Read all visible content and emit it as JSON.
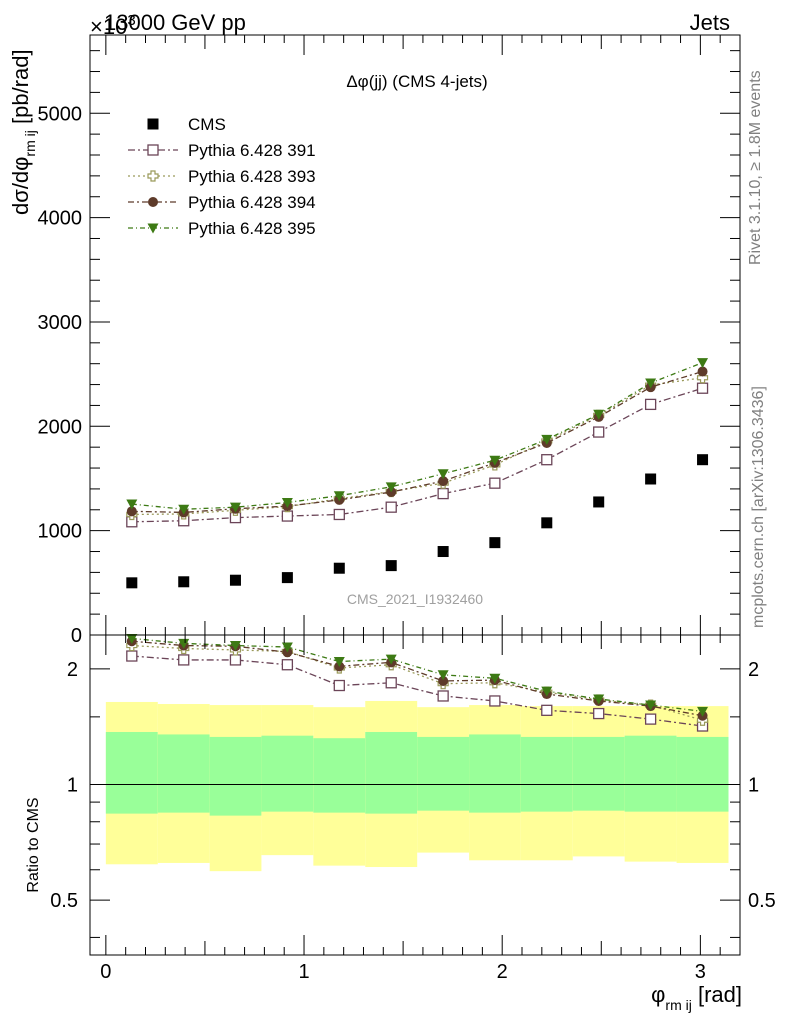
{
  "header": {
    "left": "13000 GeV pp",
    "right": "Jets",
    "exponent": "×10",
    "exponent_power": "3"
  },
  "side_texts": {
    "rivet": "Rivet 3.1.10, ≥ 1.8M events",
    "mcplots": "mcplots.cern.ch [arXiv:1306.3436]"
  },
  "chart_data": [
    {
      "type": "scatter",
      "title": "Δφ(jj) (CMS 4-jets)",
      "watermark": "CMS_2021_I1932460",
      "ylabel": "dσ/dφ",
      "ylabel_sub": "rm ij",
      "ylabel_unit": " [pb/rad]",
      "ylim": [
        0,
        5750
      ],
      "y_ticks": [
        1000,
        2000,
        3000,
        4000,
        5000
      ],
      "y_tick_labels": [
        "1000",
        "2000",
        "3000",
        "4000",
        "5000"
      ],
      "y_zero_label": "0",
      "xlim": [
        -0.08,
        3.2
      ],
      "x": [
        0.131,
        0.393,
        0.654,
        0.916,
        1.178,
        1.44,
        1.702,
        1.963,
        2.225,
        2.487,
        2.749,
        3.011
      ],
      "legend_position": "top-left",
      "series": [
        {
          "name": "CMS",
          "marker": "filled-square",
          "color": "#000000",
          "values": [
            500,
            510,
            525,
            550,
            640,
            665,
            800,
            885,
            1075,
            1275,
            1495,
            1680
          ]
        },
        {
          "name": "Pythia 6.428 391",
          "marker": "open-square",
          "color": "#6b4558",
          "values": [
            1085,
            1095,
            1125,
            1140,
            1155,
            1225,
            1355,
            1455,
            1680,
            1945,
            2210,
            2365
          ]
        },
        {
          "name": "Pythia 6.428 393",
          "marker": "open-cross",
          "color": "#9a9a5a",
          "values": [
            1155,
            1160,
            1195,
            1230,
            1305,
            1375,
            1455,
            1630,
            1860,
            2105,
            2395,
            2465
          ]
        },
        {
          "name": "Pythia 6.428 394",
          "marker": "filled-circle",
          "color": "#5e3b2a",
          "values": [
            1185,
            1175,
            1210,
            1235,
            1295,
            1370,
            1475,
            1650,
            1840,
            2090,
            2375,
            2525
          ]
        },
        {
          "name": "Pythia 6.428 395",
          "marker": "filled-triangle-down",
          "color": "#3d7a14",
          "values": [
            1255,
            1205,
            1225,
            1270,
            1335,
            1420,
            1545,
            1675,
            1875,
            2115,
            2415,
            2610
          ]
        }
      ]
    },
    {
      "type": "scatter",
      "ylabel": "Ratio to CMS",
      "log_y": true,
      "ylim": [
        0.36,
        2.45
      ],
      "y_ticks": [
        0.5,
        1,
        2
      ],
      "y_tick_labels": [
        "0.5",
        "1",
        "2"
      ],
      "xlabel": "φ",
      "xlabel_sub": "rm ij",
      "xlabel_unit": " [rad]",
      "x_ticks": [
        0,
        1,
        2,
        3
      ],
      "x_tick_labels": [
        "0",
        "1",
        "2",
        "3"
      ],
      "x": [
        0.131,
        0.393,
        0.654,
        0.916,
        1.178,
        1.44,
        1.702,
        1.963,
        2.225,
        2.487,
        2.749,
        3.011
      ],
      "bands": {
        "x_edges": [
          0,
          0.262,
          0.524,
          0.785,
          1.047,
          1.309,
          1.571,
          1.833,
          2.094,
          2.356,
          2.618,
          2.88,
          3.142
        ],
        "inner_low": [
          0.84,
          0.845,
          0.83,
          0.85,
          0.845,
          0.84,
          0.855,
          0.845,
          0.85,
          0.855,
          0.85,
          0.85
        ],
        "inner_high": [
          1.37,
          1.35,
          1.33,
          1.34,
          1.32,
          1.37,
          1.33,
          1.35,
          1.33,
          1.33,
          1.34,
          1.33
        ],
        "outer_low": [
          0.62,
          0.625,
          0.595,
          0.655,
          0.615,
          0.61,
          0.665,
          0.635,
          0.635,
          0.65,
          0.63,
          0.625
        ],
        "outer_high": [
          1.64,
          1.62,
          1.61,
          1.61,
          1.59,
          1.65,
          1.59,
          1.61,
          1.6,
          1.6,
          1.6,
          1.6
        ],
        "inner_color": "#99ff99",
        "outer_color": "#ffff99"
      },
      "series": [
        {
          "name": "Pythia 6.428 391",
          "values": [
            2.16,
            2.11,
            2.11,
            2.05,
            1.81,
            1.84,
            1.7,
            1.65,
            1.56,
            1.53,
            1.48,
            1.42
          ]
        },
        {
          "name": "Pythia 6.428 393",
          "values": [
            2.3,
            2.26,
            2.24,
            2.22,
            2.01,
            2.05,
            1.83,
            1.84,
            1.74,
            1.66,
            1.61,
            1.47
          ]
        },
        {
          "name": "Pythia 6.428 394",
          "values": [
            2.36,
            2.3,
            2.29,
            2.21,
            2.03,
            2.08,
            1.86,
            1.87,
            1.72,
            1.65,
            1.6,
            1.51
          ]
        },
        {
          "name": "Pythia 6.428 395",
          "values": [
            2.4,
            2.33,
            2.3,
            2.28,
            2.09,
            2.12,
            1.93,
            1.89,
            1.75,
            1.67,
            1.61,
            1.55
          ]
        }
      ]
    }
  ]
}
